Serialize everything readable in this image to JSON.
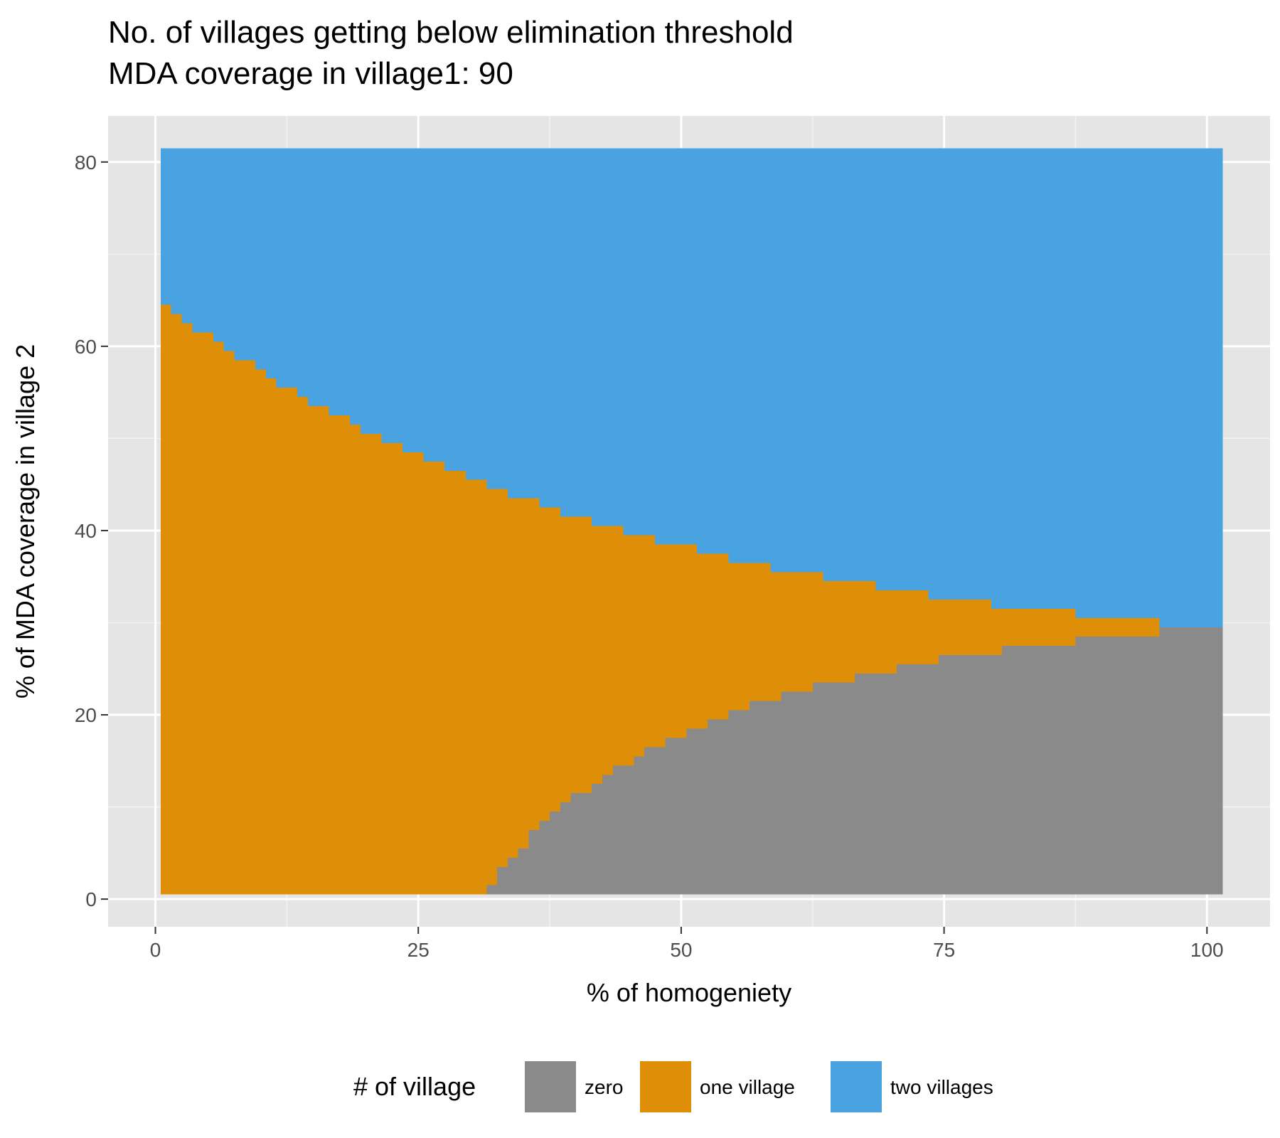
{
  "chart_data": {
    "type": "heatmap",
    "title_lines": [
      "No. of villages getting below elimination threshold",
      "MDA coverage in village1: 90"
    ],
    "xlabel": "% of homogeniety",
    "ylabel": "% of MDA coverage in village 2",
    "xlim": [
      -4.5,
      106
    ],
    "ylim": [
      -3,
      85
    ],
    "x_ticks": [
      0,
      25,
      50,
      75,
      100
    ],
    "y_ticks": [
      0,
      20,
      40,
      60,
      80
    ],
    "grid": true,
    "legend": {
      "title": "# of village",
      "position": "bottom",
      "entries": [
        {
          "label": "zero",
          "color": "#8a8a8a"
        },
        {
          "label": "one village",
          "color": "#df8e08"
        },
        {
          "label": "two villages",
          "color": "#48a3e0"
        }
      ]
    },
    "x_range": [
      0.5,
      101.5
    ],
    "y_range": [
      0.5,
      81.5
    ],
    "zero_upper_boundary": [
      [
        31.5,
        1.5
      ],
      [
        32.5,
        3.5
      ],
      [
        33.5,
        4.5
      ],
      [
        34.5,
        5.5
      ],
      [
        35.5,
        7.5
      ],
      [
        36.5,
        8.5
      ],
      [
        37.5,
        9.5
      ],
      [
        38.5,
        10.5
      ],
      [
        39.5,
        11.5
      ],
      [
        41.5,
        12.5
      ],
      [
        42.5,
        13.5
      ],
      [
        43.5,
        14.5
      ],
      [
        45.5,
        15.5
      ],
      [
        46.5,
        16.5
      ],
      [
        48.5,
        17.5
      ],
      [
        50.5,
        18.5
      ],
      [
        52.5,
        19.5
      ],
      [
        54.5,
        20.5
      ],
      [
        56.5,
        21.5
      ],
      [
        59.5,
        22.5
      ],
      [
        62.5,
        23.5
      ],
      [
        66.5,
        24.5
      ],
      [
        70.5,
        25.5
      ],
      [
        74.5,
        26.5
      ],
      [
        80.5,
        27.5
      ],
      [
        87.5,
        28.5
      ],
      [
        95.5,
        29.5
      ]
    ],
    "one_upper_boundary": [
      [
        0.5,
        64.5
      ],
      [
        1.5,
        63.5
      ],
      [
        2.5,
        62.5
      ],
      [
        3.5,
        61.5
      ],
      [
        5.5,
        60.5
      ],
      [
        6.5,
        59.5
      ],
      [
        7.5,
        58.5
      ],
      [
        9.5,
        57.5
      ],
      [
        10.5,
        56.5
      ],
      [
        11.5,
        55.5
      ],
      [
        13.5,
        54.5
      ],
      [
        14.5,
        53.5
      ],
      [
        16.5,
        52.5
      ],
      [
        18.5,
        51.5
      ],
      [
        19.5,
        50.5
      ],
      [
        21.5,
        49.5
      ],
      [
        23.5,
        48.5
      ],
      [
        25.5,
        47.5
      ],
      [
        27.5,
        46.5
      ],
      [
        29.5,
        45.5
      ],
      [
        31.5,
        44.5
      ],
      [
        33.5,
        43.5
      ],
      [
        36.5,
        42.5
      ],
      [
        38.5,
        41.5
      ],
      [
        41.5,
        40.5
      ],
      [
        44.5,
        39.5
      ],
      [
        47.5,
        38.5
      ],
      [
        51.5,
        37.5
      ],
      [
        54.5,
        36.5
      ],
      [
        58.5,
        35.5
      ],
      [
        63.5,
        34.5
      ],
      [
        68.5,
        33.5
      ],
      [
        73.5,
        32.5
      ],
      [
        79.5,
        31.5
      ],
      [
        87.5,
        30.5
      ],
      [
        95.5,
        29.5
      ]
    ]
  }
}
